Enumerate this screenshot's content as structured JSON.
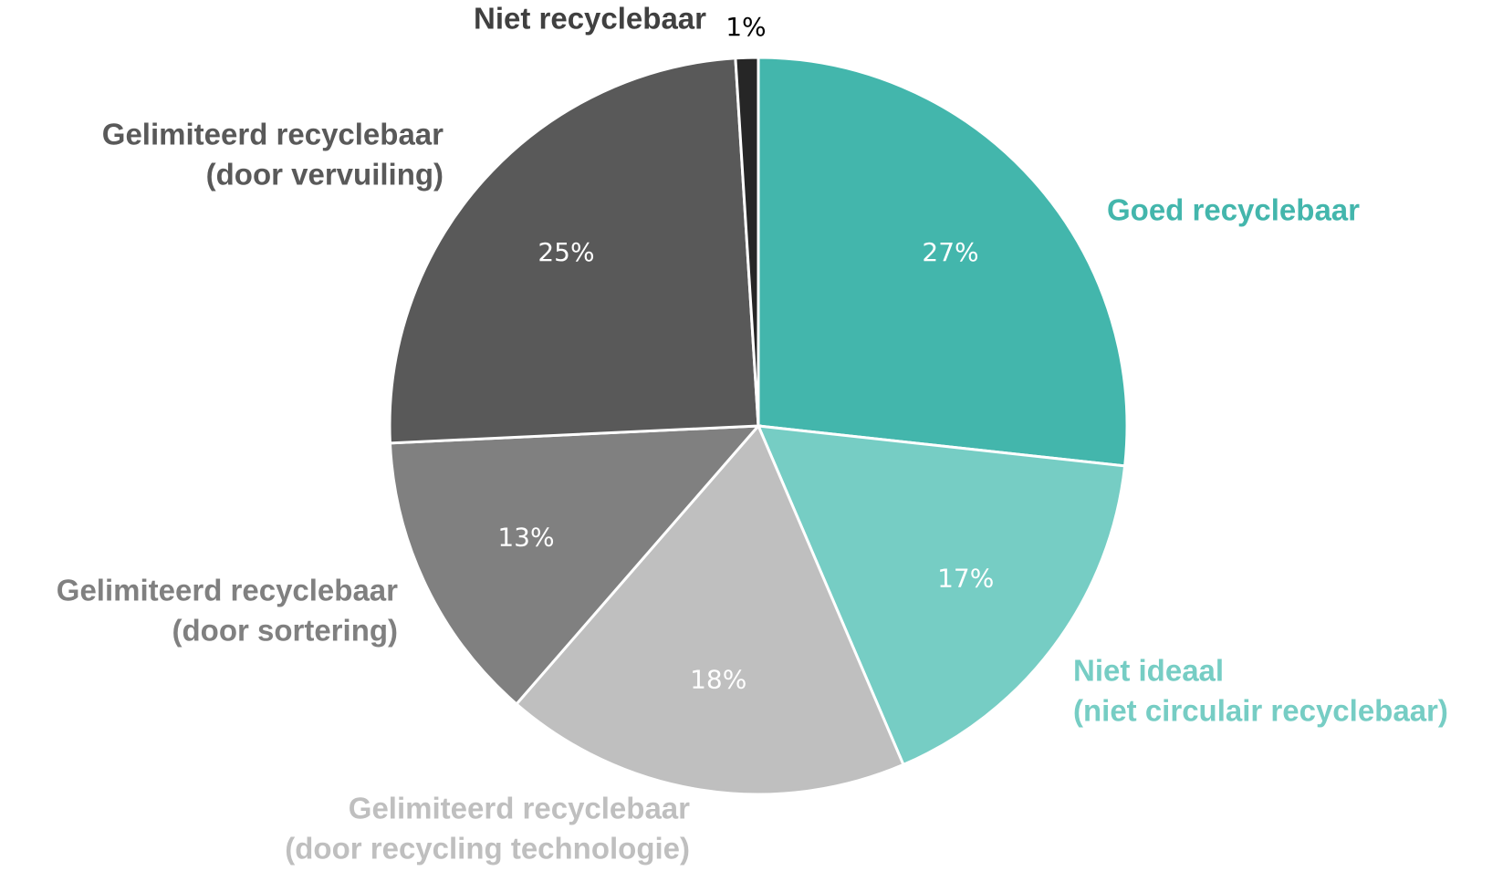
{
  "chart_data": {
    "type": "pie",
    "categories": [
      [
        "Goed recyclebaar"
      ],
      [
        "Niet ideaal",
        "(niet circulair recyclebaar)"
      ],
      [
        "Gelimiteerd recyclebaar",
        "(door recycling technologie)"
      ],
      [
        "Gelimiteerd recyclebaar",
        "(door sortering)"
      ],
      [
        "Gelimiteerd recyclebaar",
        "(door vervuiling)"
      ],
      [
        "Niet recyclebaar"
      ]
    ],
    "values": [
      27,
      17,
      18,
      13,
      25,
      1
    ],
    "value_labels": [
      "27%",
      "17%",
      "18%",
      "13%",
      "25%",
      "1%"
    ],
    "colors": [
      "#43b6ac",
      "#76cdc4",
      "#bfbfbf",
      "#808080",
      "#595959",
      "#262626"
    ],
    "label_colors": [
      "#43b6ac",
      "#76cdc4",
      "#bfbfbf",
      "#808080",
      "#595959",
      "#404040"
    ]
  }
}
